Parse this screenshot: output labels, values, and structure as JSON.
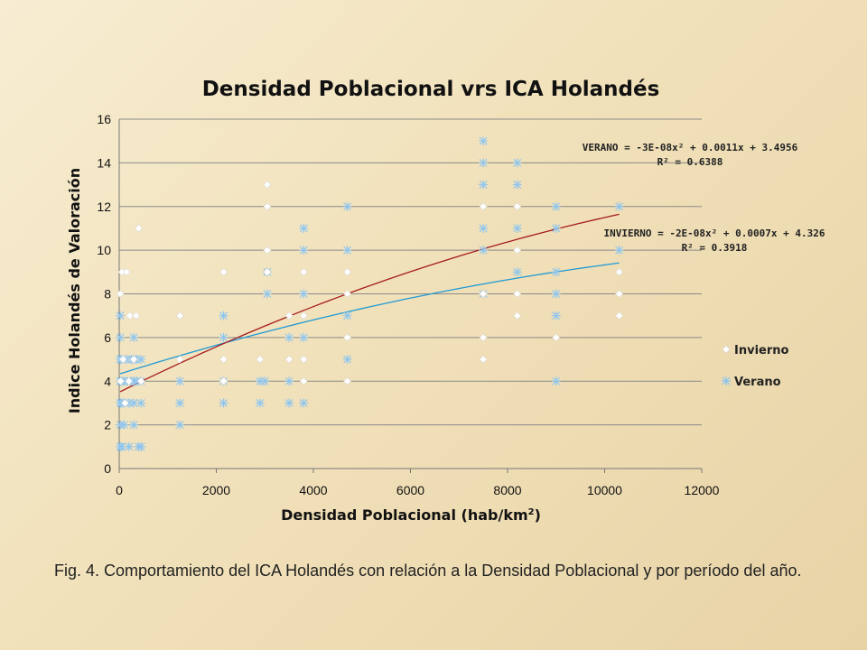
{
  "chart_data": {
    "type": "scatter",
    "title": "Densidad Poblacional vrs ICA Holandés",
    "xlabel_main": "Densidad Poblacional (hab/km",
    "xlabel_sup": "2",
    "xlabel_end": ")",
    "ylabel": "Indice Holandés de Valoración",
    "xlim": [
      0,
      12000
    ],
    "ylim": [
      0,
      16
    ],
    "x_ticks": [
      "0",
      "2000",
      "4000",
      "6000",
      "8000",
      "10000",
      "12000"
    ],
    "y_ticks": [
      "0",
      "2",
      "4",
      "6",
      "8",
      "10",
      "12",
      "14",
      "16"
    ],
    "grid": "horizontal",
    "legend_position": "right",
    "series": [
      {
        "name": "Invierno",
        "marker": "diamond",
        "color": "#ffffff",
        "points": [
          [
            20,
            8
          ],
          [
            60,
            9
          ],
          [
            150,
            9
          ],
          [
            220,
            7
          ],
          [
            350,
            7
          ],
          [
            400,
            11
          ],
          [
            30,
            4
          ],
          [
            80,
            5
          ],
          [
            120,
            3
          ],
          [
            200,
            4
          ],
          [
            300,
            5
          ],
          [
            450,
            4
          ],
          [
            1250,
            7
          ],
          [
            1250,
            5
          ],
          [
            2150,
            9
          ],
          [
            2150,
            5
          ],
          [
            2150,
            4
          ],
          [
            2900,
            5
          ],
          [
            3050,
            13
          ],
          [
            3050,
            12
          ],
          [
            3050,
            10
          ],
          [
            3050,
            9
          ],
          [
            3500,
            7
          ],
          [
            3500,
            5
          ],
          [
            3800,
            9
          ],
          [
            3800,
            7
          ],
          [
            3800,
            5
          ],
          [
            3800,
            4
          ],
          [
            4700,
            9
          ],
          [
            4700,
            8
          ],
          [
            4700,
            6
          ],
          [
            4700,
            4
          ],
          [
            7500,
            12
          ],
          [
            7500,
            8
          ],
          [
            7500,
            6
          ],
          [
            7500,
            5
          ],
          [
            8200,
            12
          ],
          [
            8200,
            10
          ],
          [
            8200,
            8
          ],
          [
            8200,
            7
          ],
          [
            9000,
            6
          ],
          [
            10300,
            9
          ],
          [
            10300,
            8
          ],
          [
            10300,
            7
          ]
        ],
        "trendline": {
          "equation": "INVIERNO = -2E-08x² + 0.0007x + 4.326",
          "r2": "R² = 0.3918",
          "coefficients": [
            -2e-08,
            0.0007,
            4.326
          ],
          "color": "#1f9ad6"
        }
      },
      {
        "name": "Verano",
        "marker": "asterisk",
        "color": "#8fc6ef",
        "points": [
          [
            20,
            7
          ],
          [
            20,
            6
          ],
          [
            20,
            5
          ],
          [
            20,
            4
          ],
          [
            20,
            3
          ],
          [
            20,
            2
          ],
          [
            20,
            1
          ],
          [
            50,
            5
          ],
          [
            50,
            4
          ],
          [
            50,
            3
          ],
          [
            50,
            1
          ],
          [
            100,
            4
          ],
          [
            100,
            3
          ],
          [
            100,
            2
          ],
          [
            150,
            5
          ],
          [
            150,
            4
          ],
          [
            200,
            3
          ],
          [
            200,
            1
          ],
          [
            250,
            5
          ],
          [
            250,
            4
          ],
          [
            300,
            6
          ],
          [
            300,
            5
          ],
          [
            300,
            4
          ],
          [
            300,
            3
          ],
          [
            300,
            2
          ],
          [
            350,
            5
          ],
          [
            350,
            4
          ],
          [
            400,
            1
          ],
          [
            450,
            5
          ],
          [
            450,
            4
          ],
          [
            450,
            3
          ],
          [
            450,
            1
          ],
          [
            1250,
            4
          ],
          [
            1250,
            3
          ],
          [
            1250,
            2
          ],
          [
            2150,
            7
          ],
          [
            2150,
            6
          ],
          [
            2150,
            4
          ],
          [
            2150,
            3
          ],
          [
            2900,
            4
          ],
          [
            2900,
            3
          ],
          [
            3000,
            4
          ],
          [
            3050,
            9
          ],
          [
            3050,
            8
          ],
          [
            3500,
            6
          ],
          [
            3500,
            4
          ],
          [
            3500,
            3
          ],
          [
            3800,
            11
          ],
          [
            3800,
            10
          ],
          [
            3800,
            8
          ],
          [
            3800,
            6
          ],
          [
            3800,
            3
          ],
          [
            4700,
            12
          ],
          [
            4700,
            10
          ],
          [
            4700,
            7
          ],
          [
            4700,
            5
          ],
          [
            7500,
            15
          ],
          [
            7500,
            14
          ],
          [
            7500,
            13
          ],
          [
            7500,
            11
          ],
          [
            7500,
            10
          ],
          [
            7500,
            8
          ],
          [
            8200,
            14
          ],
          [
            8200,
            13
          ],
          [
            8200,
            11
          ],
          [
            8200,
            9
          ],
          [
            9000,
            12
          ],
          [
            9000,
            11
          ],
          [
            9000,
            9
          ],
          [
            9000,
            8
          ],
          [
            9000,
            7
          ],
          [
            9000,
            4
          ],
          [
            10300,
            12
          ],
          [
            10300,
            10
          ]
        ],
        "trendline": {
          "equation": "VERANO = -3E-08x² + 0.0011x + 3.4956",
          "r2": "R² = 0.6388",
          "coefficients": [
            -3e-08,
            0.0011,
            3.4956
          ],
          "color": "#a61c1c"
        }
      }
    ]
  },
  "caption": "Fig. 4. Comportamiento del ICA Holandés con relación a la Densidad Poblacional y por período del año."
}
